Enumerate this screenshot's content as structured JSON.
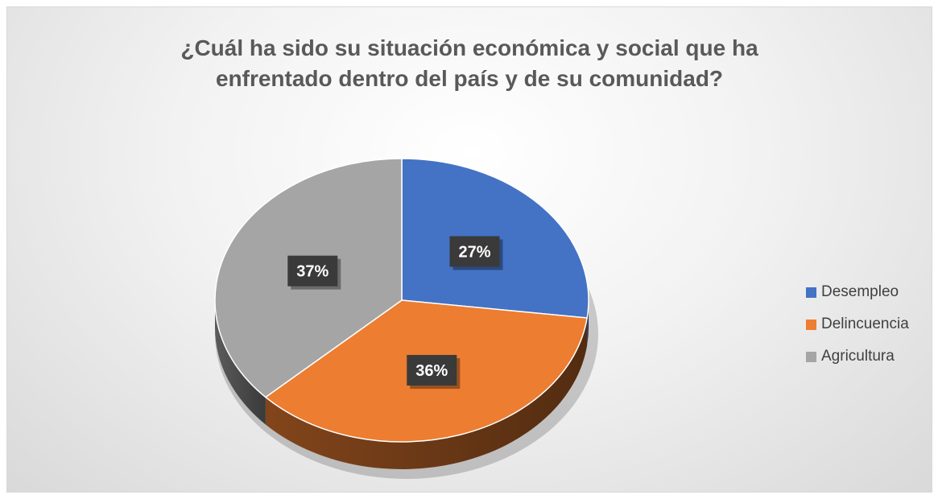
{
  "chart_data": {
    "type": "pie",
    "title_lines": [
      "¿Cuál ha sido su situación económica y social que ha",
      "enfrentado dentro del país y de su comunidad?"
    ],
    "categories": [
      "Desempleo",
      "Delincuencia",
      "Agricultura"
    ],
    "values": [
      27,
      36,
      37
    ],
    "labels": [
      "27%",
      "36%",
      "37%"
    ],
    "colors": [
      "#4472c4",
      "#ed7d31",
      "#a5a5a5"
    ],
    "legend_position": "right",
    "style": "3d"
  }
}
